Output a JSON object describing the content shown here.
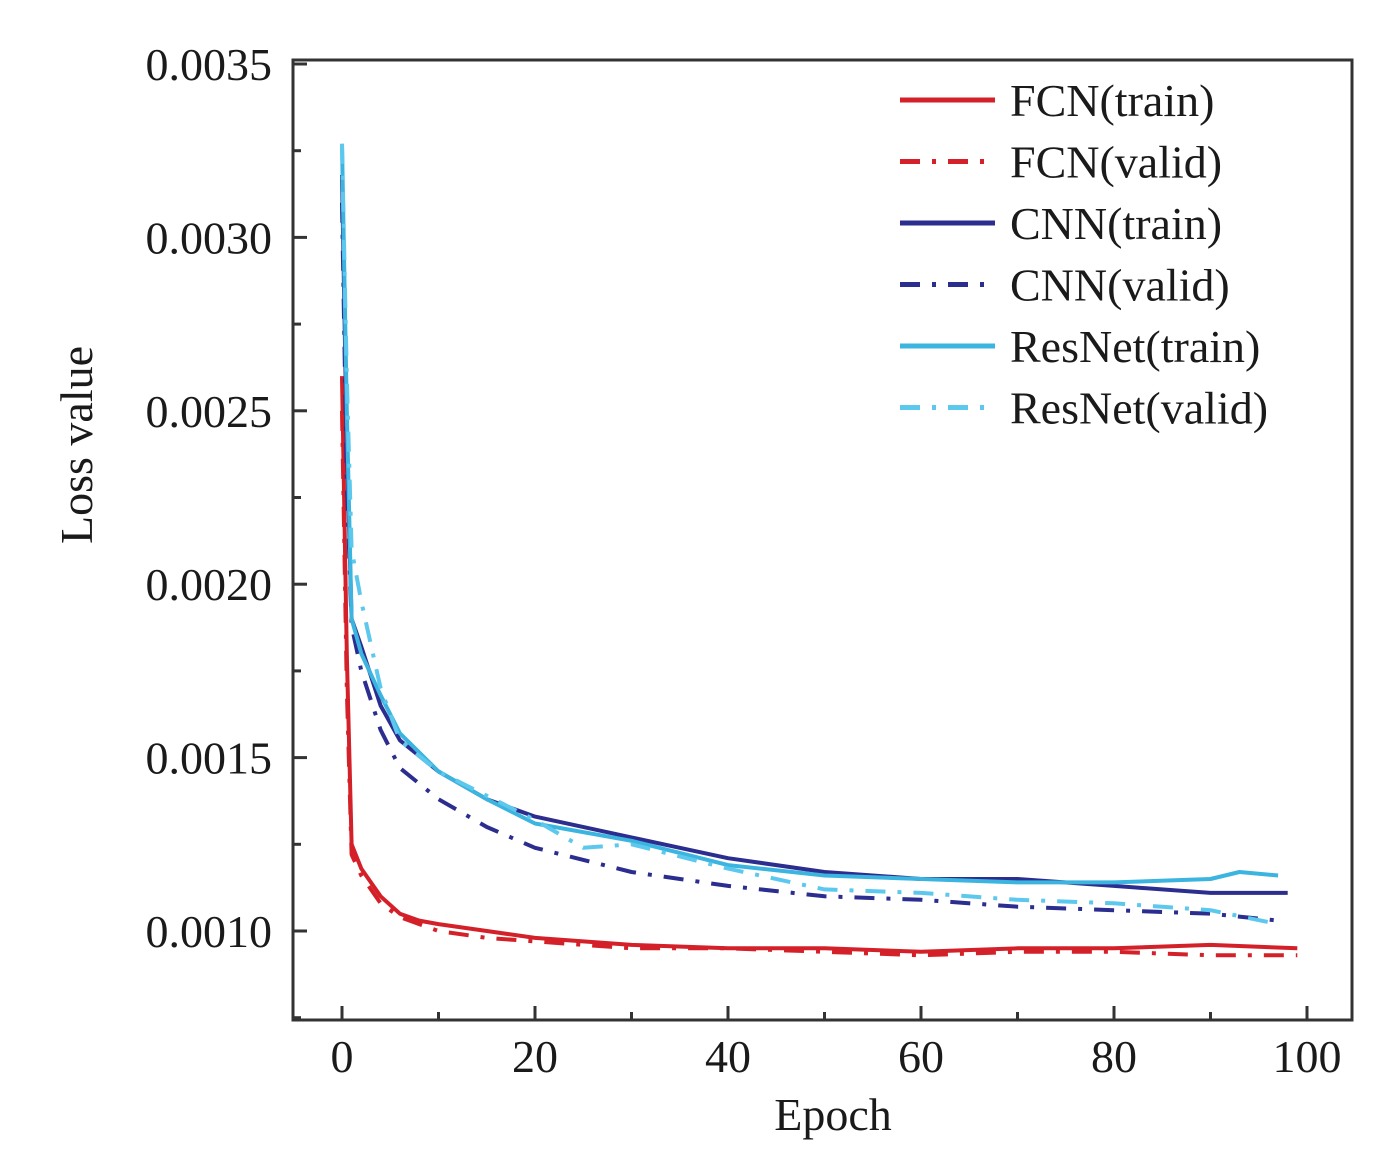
{
  "chart_data": {
    "type": "line",
    "title": "",
    "xlabel": "Epoch",
    "ylabel": "Loss value",
    "xlim": [
      -5,
      104.7
    ],
    "ylim": [
      0.00074,
      0.00351
    ],
    "xticks": [
      0,
      20,
      40,
      60,
      80,
      100
    ],
    "xtick_labels": [
      "0",
      "20",
      "40",
      "60",
      "80",
      "100"
    ],
    "yticks": [
      0.001,
      0.0015,
      0.002,
      0.0025,
      0.003,
      0.0035
    ],
    "ytick_labels": [
      "0.0010",
      "0.0015",
      "0.0020",
      "0.0025",
      "0.0030",
      "0.0035"
    ],
    "grid": false,
    "legend_position": "top-right",
    "series": [
      {
        "name": "FCN(train)",
        "color": "#d42028",
        "style": "solid",
        "x": [
          0,
          0.5,
          1,
          2,
          4,
          6,
          8,
          10,
          15,
          20,
          30,
          40,
          50,
          60,
          70,
          80,
          90,
          99
        ],
        "y": [
          0.0026,
          0.0018,
          0.00125,
          0.00118,
          0.0011,
          0.00105,
          0.00103,
          0.00102,
          0.001,
          0.00098,
          0.00096,
          0.00095,
          0.00095,
          0.00094,
          0.00095,
          0.00095,
          0.00096,
          0.00095
        ]
      },
      {
        "name": "FCN(valid)",
        "color": "#d42028",
        "style": "dashdot",
        "x": [
          0,
          0.5,
          1,
          2,
          4,
          6,
          8,
          10,
          15,
          20,
          30,
          40,
          50,
          60,
          70,
          80,
          90,
          99
        ],
        "y": [
          0.0025,
          0.0017,
          0.00122,
          0.00116,
          0.00108,
          0.00104,
          0.00102,
          0.001,
          0.00098,
          0.00097,
          0.00095,
          0.00095,
          0.00094,
          0.00093,
          0.00094,
          0.00094,
          0.00093,
          0.00093
        ]
      },
      {
        "name": "CNN(train)",
        "color": "#2b2d8f",
        "style": "solid",
        "x": [
          0,
          0.5,
          1,
          2,
          4,
          6,
          10,
          15,
          20,
          30,
          40,
          50,
          60,
          70,
          80,
          90,
          98
        ],
        "y": [
          0.00318,
          0.0024,
          0.0019,
          0.00182,
          0.00165,
          0.00155,
          0.00146,
          0.00138,
          0.00133,
          0.00127,
          0.00121,
          0.00117,
          0.00115,
          0.00115,
          0.00113,
          0.00111,
          0.00111
        ]
      },
      {
        "name": "CNN(valid)",
        "color": "#2b2d8f",
        "style": "dashdot",
        "x": [
          0,
          0.5,
          1,
          2,
          4,
          6,
          10,
          15,
          20,
          30,
          40,
          50,
          60,
          70,
          80,
          90,
          97
        ],
        "y": [
          0.0031,
          0.0023,
          0.00188,
          0.00175,
          0.00158,
          0.00147,
          0.00138,
          0.0013,
          0.00124,
          0.00117,
          0.00113,
          0.0011,
          0.00109,
          0.00107,
          0.00106,
          0.00105,
          0.00103
        ]
      },
      {
        "name": "ResNet(train)",
        "color": "#3bb4e0",
        "style": "solid",
        "x": [
          0,
          0.5,
          1,
          2,
          4,
          6,
          10,
          15,
          20,
          30,
          40,
          50,
          60,
          70,
          80,
          90,
          93,
          97
        ],
        "y": [
          0.00327,
          0.0025,
          0.0019,
          0.0018,
          0.00168,
          0.00157,
          0.00146,
          0.00138,
          0.00131,
          0.00126,
          0.00119,
          0.00116,
          0.00115,
          0.00114,
          0.00114,
          0.00115,
          0.00117,
          0.00116
        ]
      },
      {
        "name": "ResNet(valid)",
        "color": "#5cc8ee",
        "style": "dashdot",
        "x": [
          0,
          0.5,
          1,
          2,
          4,
          6,
          10,
          20,
          25,
          30,
          40,
          50,
          60,
          70,
          80,
          90,
          97
        ],
        "y": [
          0.00327,
          0.0026,
          0.0021,
          0.00195,
          0.0017,
          0.00155,
          0.00146,
          0.00132,
          0.00124,
          0.00125,
          0.00118,
          0.00112,
          0.00111,
          0.00109,
          0.00108,
          0.00106,
          0.00102
        ]
      }
    ]
  }
}
